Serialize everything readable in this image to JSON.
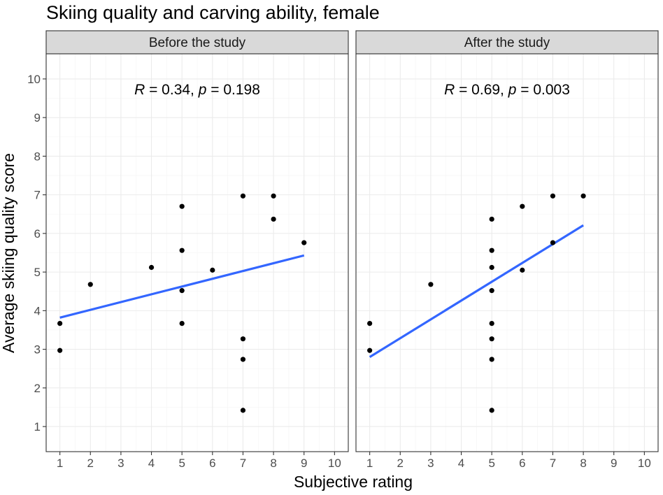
{
  "chart_data": {
    "type": "scatter",
    "title": "Skiing quality and carving ability, female",
    "xlabel": "Subjective rating",
    "ylabel": "Average skiing quality score",
    "xlim": [
      0.55,
      10.45
    ],
    "ylim": [
      0.35,
      10.65
    ],
    "x_ticks": [
      "1",
      "2",
      "3",
      "4",
      "5",
      "6",
      "7",
      "8",
      "9",
      "10"
    ],
    "y_ticks": [
      "1",
      "2",
      "3",
      "4",
      "5",
      "6",
      "7",
      "8",
      "9",
      "10"
    ],
    "grid": true,
    "panels": [
      {
        "label": "Before the study",
        "annotation": {
          "r_symbol": "R",
          "r_text": " = 0.34, ",
          "p_symbol": "p",
          "p_text": " = 0.198"
        },
        "points": [
          {
            "x": 1,
            "y": 3.67
          },
          {
            "x": 1,
            "y": 2.97
          },
          {
            "x": 2,
            "y": 4.68
          },
          {
            "x": 4,
            "y": 5.12
          },
          {
            "x": 5,
            "y": 6.7
          },
          {
            "x": 5,
            "y": 5.56
          },
          {
            "x": 5,
            "y": 4.52
          },
          {
            "x": 5,
            "y": 3.67
          },
          {
            "x": 6,
            "y": 5.05
          },
          {
            "x": 7,
            "y": 6.97
          },
          {
            "x": 7,
            "y": 3.27
          },
          {
            "x": 7,
            "y": 2.74
          },
          {
            "x": 7,
            "y": 1.42
          },
          {
            "x": 8,
            "y": 6.97
          },
          {
            "x": 8,
            "y": 6.37
          },
          {
            "x": 9,
            "y": 5.76
          }
        ],
        "fit": {
          "x": [
            1,
            9
          ],
          "y": [
            3.82,
            5.43
          ]
        }
      },
      {
        "label": "After the study",
        "annotation": {
          "r_symbol": "R",
          "r_text": " = 0.69, ",
          "p_symbol": "p",
          "p_text": " = 0.003"
        },
        "points": [
          {
            "x": 1,
            "y": 3.67
          },
          {
            "x": 1,
            "y": 2.97
          },
          {
            "x": 3,
            "y": 4.68
          },
          {
            "x": 5,
            "y": 6.37
          },
          {
            "x": 5,
            "y": 5.56
          },
          {
            "x": 5,
            "y": 5.12
          },
          {
            "x": 5,
            "y": 4.52
          },
          {
            "x": 5,
            "y": 3.67
          },
          {
            "x": 5,
            "y": 3.27
          },
          {
            "x": 5,
            "y": 2.74
          },
          {
            "x": 5,
            "y": 1.42
          },
          {
            "x": 6,
            "y": 6.7
          },
          {
            "x": 6,
            "y": 5.05
          },
          {
            "x": 7,
            "y": 6.97
          },
          {
            "x": 7,
            "y": 5.76
          },
          {
            "x": 8,
            "y": 6.97
          }
        ],
        "fit": {
          "x": [
            1,
            8
          ],
          "y": [
            2.8,
            6.21
          ]
        }
      }
    ],
    "colors": {
      "points": "#000000",
      "fit_line": "#3366ff",
      "strip_fill": "#d9d9d9",
      "panel_border": "#333333",
      "grid": "#ebebeb"
    }
  }
}
